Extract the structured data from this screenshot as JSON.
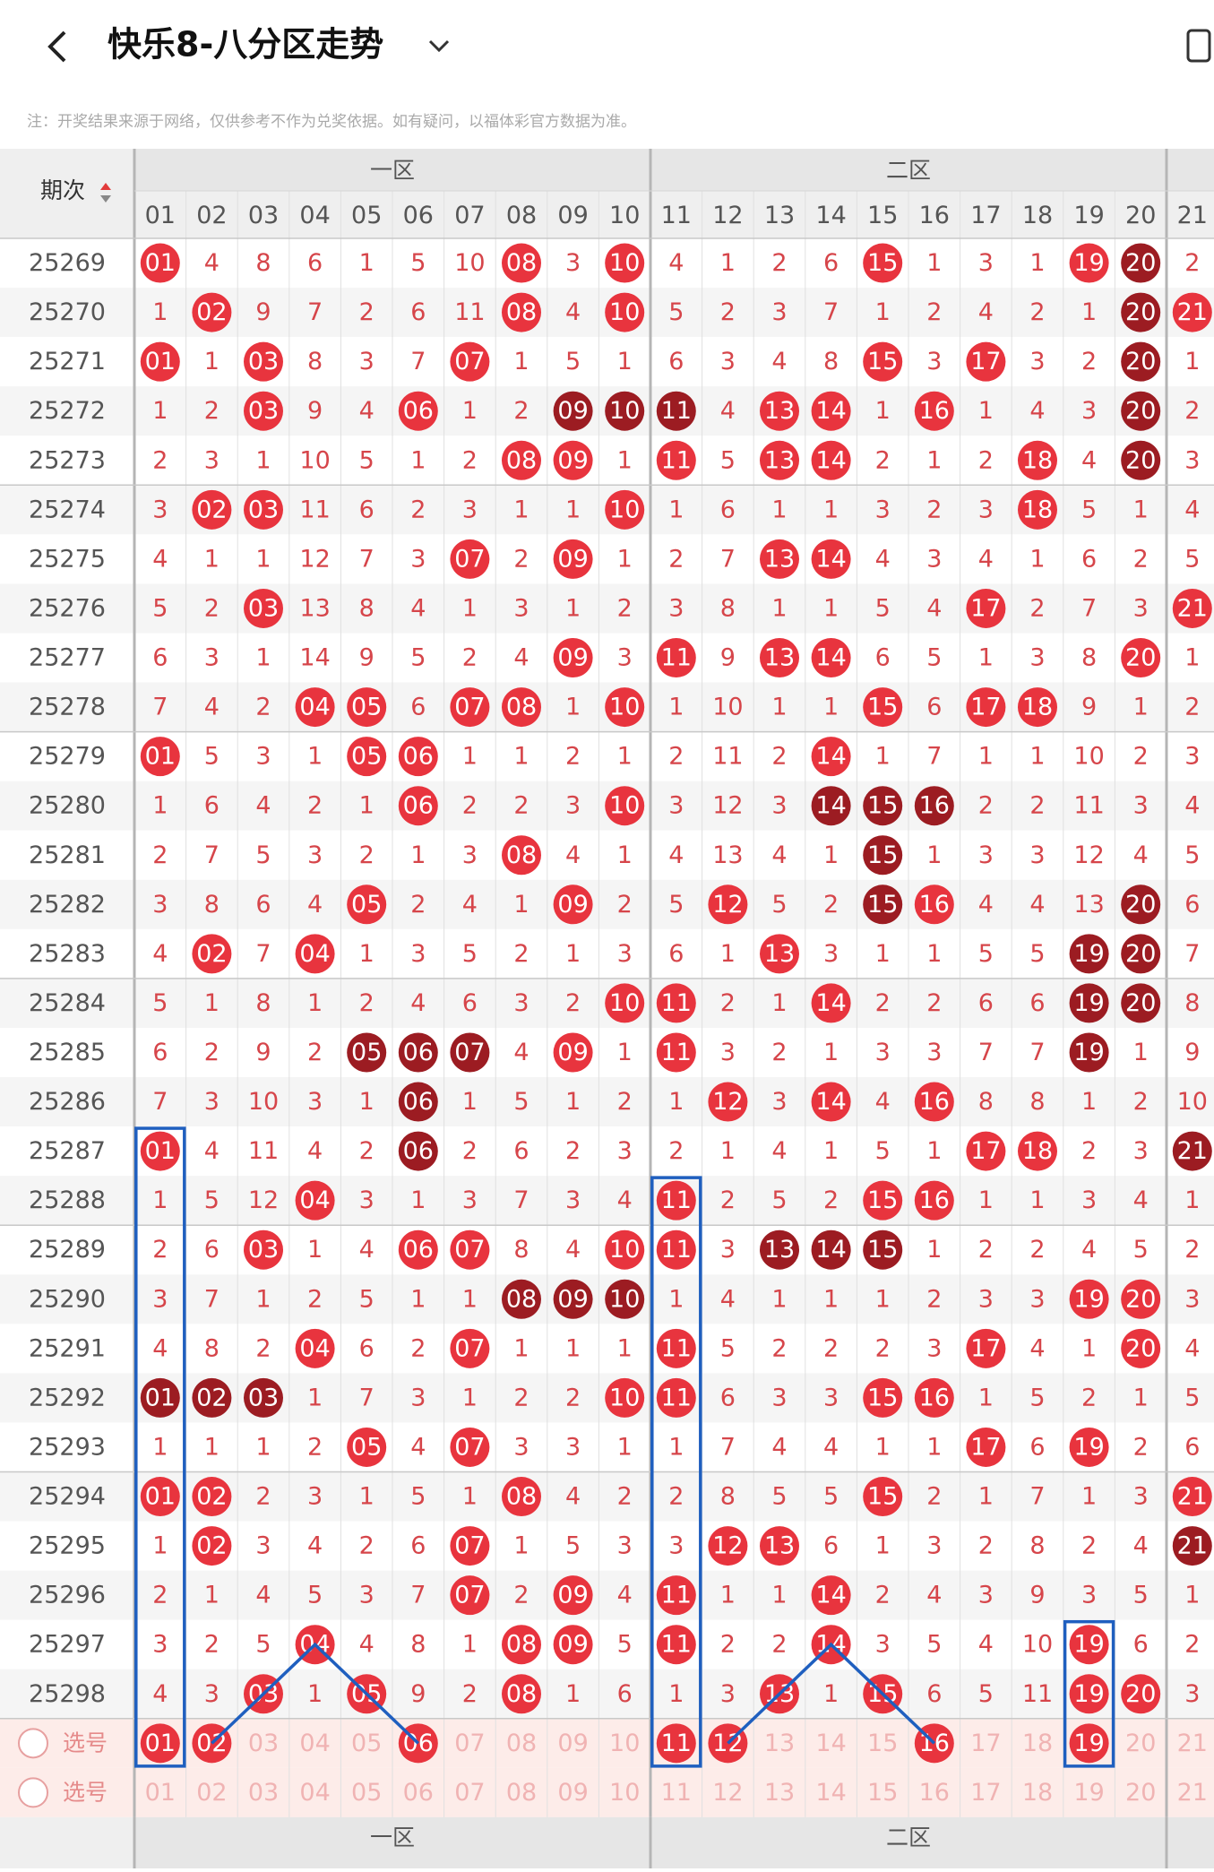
{
  "header": {
    "title": "快乐8-八分区走势",
    "note": "注：开奖结果来源于网络，仅供参考不作为兑奖依据。如有疑问，以福体彩官方数据为准。"
  },
  "table": {
    "issue_header": "期次",
    "zones": [
      "一区",
      "二区"
    ],
    "columns": [
      "01",
      "02",
      "03",
      "04",
      "05",
      "06",
      "07",
      "08",
      "09",
      "10",
      "11",
      "12",
      "13",
      "14",
      "15",
      "16",
      "17",
      "18",
      "19",
      "20",
      "21"
    ],
    "rows": [
      {
        "issue": "25269",
        "cells": [
          "01",
          "4",
          "8",
          "6",
          "1",
          "5",
          "10",
          "08",
          "3",
          "10",
          "4",
          "1",
          "2",
          "6",
          "15",
          "1",
          "3",
          "1",
          "19",
          "20",
          "2"
        ],
        "hits": [
          0,
          7,
          9,
          14,
          18
        ],
        "dark": [
          19
        ]
      },
      {
        "issue": "25270",
        "cells": [
          "1",
          "02",
          "9",
          "7",
          "2",
          "6",
          "11",
          "08",
          "4",
          "10",
          "5",
          "2",
          "3",
          "7",
          "1",
          "2",
          "4",
          "2",
          "1",
          "20",
          "21"
        ],
        "hits": [
          1,
          7,
          9,
          20
        ],
        "dark": [
          19
        ]
      },
      {
        "issue": "25271",
        "cells": [
          "01",
          "1",
          "03",
          "8",
          "3",
          "7",
          "07",
          "1",
          "5",
          "1",
          "6",
          "3",
          "4",
          "8",
          "15",
          "3",
          "17",
          "3",
          "2",
          "20",
          "1"
        ],
        "hits": [
          0,
          2,
          6,
          14,
          16
        ],
        "dark": [
          19
        ]
      },
      {
        "issue": "25272",
        "cells": [
          "1",
          "2",
          "03",
          "9",
          "4",
          "06",
          "1",
          "2",
          "09",
          "10",
          "11",
          "4",
          "13",
          "14",
          "1",
          "16",
          "1",
          "4",
          "3",
          "20",
          "2"
        ],
        "hits": [
          2,
          5,
          12,
          13,
          15
        ],
        "dark": [
          8,
          9,
          10,
          19
        ]
      },
      {
        "issue": "25273",
        "cells": [
          "2",
          "3",
          "1",
          "10",
          "5",
          "1",
          "2",
          "08",
          "09",
          "1",
          "11",
          "5",
          "13",
          "14",
          "2",
          "1",
          "2",
          "18",
          "4",
          "20",
          "3"
        ],
        "hits": [
          7,
          8,
          10,
          12,
          13,
          17
        ],
        "dark": [
          19
        ]
      },
      {
        "issue": "25274",
        "cells": [
          "3",
          "02",
          "03",
          "11",
          "6",
          "2",
          "3",
          "1",
          "1",
          "10",
          "1",
          "6",
          "1",
          "1",
          "3",
          "2",
          "3",
          "18",
          "5",
          "1",
          "4"
        ],
        "hits": [
          1,
          2,
          9,
          17
        ],
        "dark": []
      },
      {
        "issue": "25275",
        "cells": [
          "4",
          "1",
          "1",
          "12",
          "7",
          "3",
          "07",
          "2",
          "09",
          "1",
          "2",
          "7",
          "13",
          "14",
          "4",
          "3",
          "4",
          "1",
          "6",
          "2",
          "5"
        ],
        "hits": [
          6,
          8,
          12,
          13
        ],
        "dark": []
      },
      {
        "issue": "25276",
        "cells": [
          "5",
          "2",
          "03",
          "13",
          "8",
          "4",
          "1",
          "3",
          "1",
          "2",
          "3",
          "8",
          "1",
          "1",
          "5",
          "4",
          "17",
          "2",
          "7",
          "3",
          "21"
        ],
        "hits": [
          2,
          16,
          20
        ],
        "dark": []
      },
      {
        "issue": "25277",
        "cells": [
          "6",
          "3",
          "1",
          "14",
          "9",
          "5",
          "2",
          "4",
          "09",
          "3",
          "11",
          "9",
          "13",
          "14",
          "6",
          "5",
          "1",
          "3",
          "8",
          "20",
          "1"
        ],
        "hits": [
          8,
          10,
          12,
          13,
          19
        ],
        "dark": []
      },
      {
        "issue": "25278",
        "cells": [
          "7",
          "4",
          "2",
          "04",
          "05",
          "6",
          "07",
          "08",
          "1",
          "10",
          "1",
          "10",
          "1",
          "1",
          "15",
          "6",
          "17",
          "18",
          "9",
          "1",
          "2"
        ],
        "hits": [
          3,
          4,
          6,
          7,
          9,
          14,
          16,
          17
        ],
        "dark": []
      },
      {
        "issue": "25279",
        "cells": [
          "01",
          "5",
          "3",
          "1",
          "05",
          "06",
          "1",
          "1",
          "2",
          "1",
          "2",
          "11",
          "2",
          "14",
          "1",
          "7",
          "1",
          "1",
          "10",
          "2",
          "3"
        ],
        "hits": [
          0,
          4,
          5,
          13
        ],
        "dark": []
      },
      {
        "issue": "25280",
        "cells": [
          "1",
          "6",
          "4",
          "2",
          "1",
          "06",
          "2",
          "2",
          "3",
          "10",
          "3",
          "12",
          "3",
          "14",
          "15",
          "16",
          "2",
          "2",
          "11",
          "3",
          "4"
        ],
        "hits": [
          5,
          9
        ],
        "dark": [
          13,
          14,
          15
        ]
      },
      {
        "issue": "25281",
        "cells": [
          "2",
          "7",
          "5",
          "3",
          "2",
          "1",
          "3",
          "08",
          "4",
          "1",
          "4",
          "13",
          "4",
          "1",
          "15",
          "1",
          "3",
          "3",
          "12",
          "4",
          "5"
        ],
        "hits": [
          7
        ],
        "dark": [
          14
        ]
      },
      {
        "issue": "25282",
        "cells": [
          "3",
          "8",
          "6",
          "4",
          "05",
          "2",
          "4",
          "1",
          "09",
          "2",
          "5",
          "12",
          "5",
          "2",
          "15",
          "16",
          "4",
          "4",
          "13",
          "20",
          "6"
        ],
        "hits": [
          4,
          8,
          11,
          15
        ],
        "dark": [
          14,
          19
        ]
      },
      {
        "issue": "25283",
        "cells": [
          "4",
          "02",
          "7",
          "04",
          "1",
          "3",
          "5",
          "2",
          "1",
          "3",
          "6",
          "1",
          "13",
          "3",
          "1",
          "1",
          "5",
          "5",
          "19",
          "20",
          "7"
        ],
        "hits": [
          1,
          3,
          12
        ],
        "dark": [
          18,
          19
        ]
      },
      {
        "issue": "25284",
        "cells": [
          "5",
          "1",
          "8",
          "1",
          "2",
          "4",
          "6",
          "3",
          "2",
          "10",
          "11",
          "2",
          "1",
          "14",
          "2",
          "2",
          "6",
          "6",
          "19",
          "20",
          "8"
        ],
        "hits": [
          9,
          10,
          13
        ],
        "dark": [
          18,
          19
        ]
      },
      {
        "issue": "25285",
        "cells": [
          "6",
          "2",
          "9",
          "2",
          "05",
          "06",
          "07",
          "4",
          "09",
          "1",
          "11",
          "3",
          "2",
          "1",
          "3",
          "3",
          "7",
          "7",
          "19",
          "1",
          "9"
        ],
        "hits": [
          8,
          10
        ],
        "dark": [
          4,
          5,
          6,
          18
        ]
      },
      {
        "issue": "25286",
        "cells": [
          "7",
          "3",
          "10",
          "3",
          "1",
          "06",
          "1",
          "5",
          "1",
          "2",
          "1",
          "12",
          "3",
          "14",
          "4",
          "16",
          "8",
          "8",
          "1",
          "2",
          "10"
        ],
        "hits": [
          11,
          13,
          15
        ],
        "dark": [
          5
        ]
      },
      {
        "issue": "25287",
        "cells": [
          "01",
          "4",
          "11",
          "4",
          "2",
          "06",
          "2",
          "6",
          "2",
          "3",
          "2",
          "1",
          "4",
          "1",
          "5",
          "1",
          "17",
          "18",
          "2",
          "3",
          "21"
        ],
        "hits": [
          0,
          16,
          17
        ],
        "dark": [
          5,
          20
        ]
      },
      {
        "issue": "25288",
        "cells": [
          "1",
          "5",
          "12",
          "04",
          "3",
          "1",
          "3",
          "7",
          "3",
          "4",
          "11",
          "2",
          "5",
          "2",
          "15",
          "16",
          "1",
          "1",
          "3",
          "4",
          "1"
        ],
        "hits": [
          3,
          10,
          14,
          15
        ],
        "dark": []
      },
      {
        "issue": "25289",
        "cells": [
          "2",
          "6",
          "03",
          "1",
          "4",
          "06",
          "07",
          "8",
          "4",
          "10",
          "11",
          "3",
          "13",
          "14",
          "15",
          "1",
          "2",
          "2",
          "4",
          "5",
          "2"
        ],
        "hits": [
          2,
          5,
          6,
          9,
          10
        ],
        "dark": [
          12,
          13,
          14
        ]
      },
      {
        "issue": "25290",
        "cells": [
          "3",
          "7",
          "1",
          "2",
          "5",
          "1",
          "1",
          "08",
          "09",
          "10",
          "1",
          "4",
          "1",
          "1",
          "1",
          "2",
          "3",
          "3",
          "19",
          "20",
          "3"
        ],
        "hits": [
          18,
          19
        ],
        "dark": [
          7,
          8,
          9
        ]
      },
      {
        "issue": "25291",
        "cells": [
          "4",
          "8",
          "2",
          "04",
          "6",
          "2",
          "07",
          "1",
          "1",
          "1",
          "11",
          "5",
          "2",
          "2",
          "2",
          "3",
          "17",
          "4",
          "1",
          "20",
          "4"
        ],
        "hits": [
          3,
          6,
          10,
          16,
          19
        ],
        "dark": []
      },
      {
        "issue": "25292",
        "cells": [
          "01",
          "02",
          "03",
          "1",
          "7",
          "3",
          "1",
          "2",
          "2",
          "10",
          "11",
          "6",
          "3",
          "3",
          "15",
          "16",
          "1",
          "5",
          "2",
          "1",
          "5"
        ],
        "hits": [
          9,
          10,
          14,
          15
        ],
        "dark": [
          0,
          1,
          2
        ]
      },
      {
        "issue": "25293",
        "cells": [
          "1",
          "1",
          "1",
          "2",
          "05",
          "4",
          "07",
          "3",
          "3",
          "1",
          "1",
          "7",
          "4",
          "4",
          "1",
          "1",
          "17",
          "6",
          "19",
          "2",
          "6"
        ],
        "hits": [
          4,
          6,
          16,
          18
        ],
        "dark": []
      },
      {
        "issue": "25294",
        "cells": [
          "01",
          "02",
          "2",
          "3",
          "1",
          "5",
          "1",
          "08",
          "4",
          "2",
          "2",
          "8",
          "5",
          "5",
          "15",
          "2",
          "1",
          "7",
          "1",
          "3",
          "21"
        ],
        "hits": [
          0,
          1,
          7,
          14,
          20
        ],
        "dark": []
      },
      {
        "issue": "25295",
        "cells": [
          "1",
          "02",
          "3",
          "4",
          "2",
          "6",
          "07",
          "1",
          "5",
          "3",
          "3",
          "12",
          "13",
          "6",
          "1",
          "3",
          "2",
          "8",
          "2",
          "4",
          "21"
        ],
        "hits": [
          1,
          6,
          11,
          12
        ],
        "dark": [
          20
        ]
      },
      {
        "issue": "25296",
        "cells": [
          "2",
          "1",
          "4",
          "5",
          "3",
          "7",
          "07",
          "2",
          "09",
          "4",
          "11",
          "1",
          "1",
          "14",
          "2",
          "4",
          "3",
          "9",
          "3",
          "5",
          "1"
        ],
        "hits": [
          6,
          8,
          10,
          13
        ],
        "dark": []
      },
      {
        "issue": "25297",
        "cells": [
          "3",
          "2",
          "5",
          "04",
          "4",
          "8",
          "1",
          "08",
          "09",
          "5",
          "11",
          "2",
          "2",
          "14",
          "3",
          "5",
          "4",
          "10",
          "19",
          "6",
          "2"
        ],
        "hits": [
          3,
          7,
          8,
          10,
          13,
          18
        ],
        "dark": []
      },
      {
        "issue": "25298",
        "cells": [
          "4",
          "3",
          "03",
          "1",
          "05",
          "9",
          "2",
          "08",
          "1",
          "6",
          "1",
          "3",
          "13",
          "1",
          "15",
          "6",
          "5",
          "11",
          "19",
          "20",
          "3"
        ],
        "hits": [
          2,
          4,
          7,
          12,
          14,
          18,
          19
        ],
        "dark": []
      }
    ],
    "pick_rows": [
      {
        "label": "选号",
        "selected": [
          0,
          1,
          5,
          10,
          11,
          15,
          18
        ]
      },
      {
        "label": "选号",
        "selected": []
      }
    ]
  }
}
